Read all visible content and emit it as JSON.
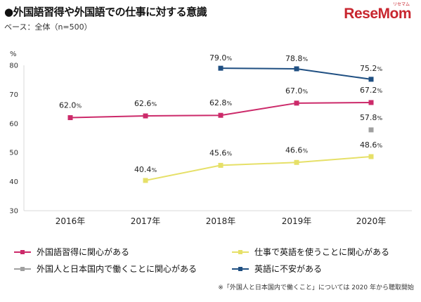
{
  "header": {
    "title": "●外国語習得や外国語での仕事に対する意識",
    "subtitle": "ベース：全体（n=500）",
    "logo_text": "ReseMom",
    "logo_ruby": "リセマム"
  },
  "footnote": "※「外国人と日本国内で働くこと」については 2020 年から聴取開始",
  "chart_data": {
    "type": "line",
    "categories": [
      "2016年",
      "2017年",
      "2018年",
      "2019年",
      "2020年"
    ],
    "y_unit": "%",
    "ylim": [
      30,
      80
    ],
    "yticks": [
      "30",
      "40",
      "50",
      "60",
      "70",
      "80"
    ],
    "grid": false,
    "legend_position": "bottom",
    "series": [
      {
        "name": "外国語習得に関心がある",
        "color": "#cc2a6a",
        "values": [
          62.0,
          62.6,
          62.8,
          67.0,
          67.2
        ],
        "labels": [
          "62.0",
          "62.6",
          "62.8",
          "67.0",
          "67.2"
        ]
      },
      {
        "name": "仕事で英語を使うことに関心がある",
        "color": "#e6e068",
        "values": [
          null,
          40.4,
          45.6,
          46.6,
          48.6
        ],
        "labels": [
          null,
          "40.4",
          "45.6",
          "46.6",
          "48.6"
        ]
      },
      {
        "name": "外国人と日本国内で働くことに関心がある",
        "color": "#a0a0a0",
        "values": [
          null,
          null,
          null,
          null,
          57.8
        ],
        "labels": [
          null,
          null,
          null,
          null,
          "57.8"
        ]
      },
      {
        "name": "英語に不安がある",
        "color": "#1f4f82",
        "values": [
          null,
          null,
          79.0,
          78.8,
          75.2
        ],
        "labels": [
          null,
          null,
          "79.0",
          "78.8",
          "75.2"
        ]
      }
    ]
  }
}
